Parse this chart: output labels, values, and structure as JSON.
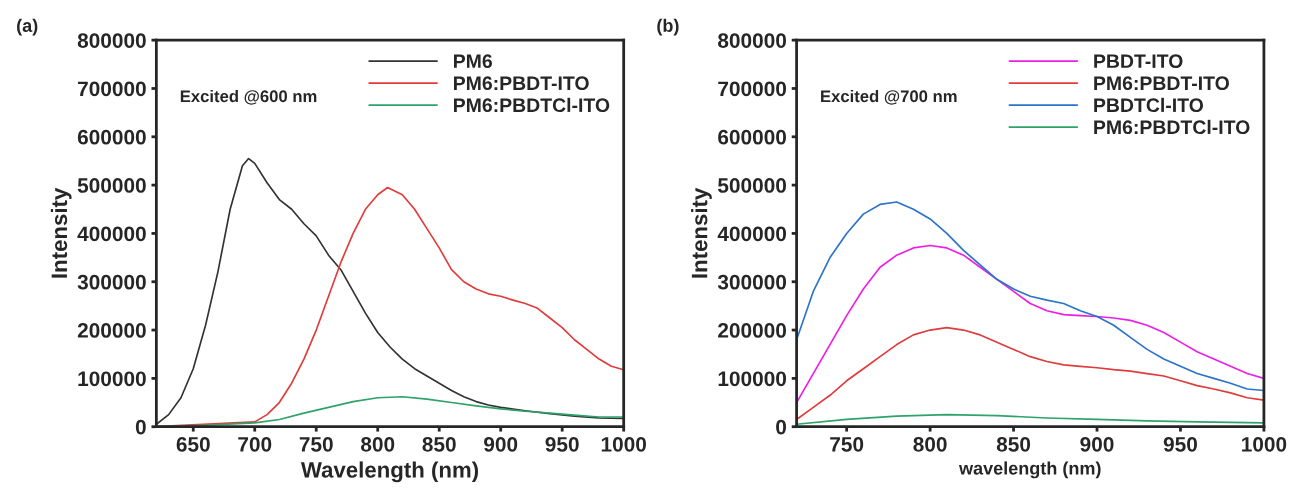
{
  "chart_data": [
    {
      "type": "line",
      "title": "(a)",
      "xlabel": "Wavelength (nm)",
      "ylabel": "Intensity",
      "annotations": [
        "Excited @600 nm"
      ],
      "xlim": [
        620,
        1000
      ],
      "xticks": [
        650,
        700,
        750,
        800,
        850,
        900,
        950,
        1000
      ],
      "ylim": [
        0,
        800000
      ],
      "yticks": [
        0,
        100000,
        200000,
        300000,
        400000,
        500000,
        600000,
        700000,
        800000
      ],
      "grid": false,
      "legend": "top right",
      "series": [
        {
          "name": "PM6",
          "color": "#333333",
          "x": [
            620,
            630,
            640,
            650,
            660,
            670,
            680,
            690,
            695,
            700,
            710,
            720,
            730,
            740,
            750,
            760,
            770,
            780,
            790,
            800,
            810,
            820,
            830,
            840,
            850,
            860,
            870,
            880,
            890,
            900,
            920,
            940,
            960,
            980,
            1000
          ],
          "values": [
            5000,
            25000,
            60000,
            120000,
            210000,
            320000,
            450000,
            540000,
            555000,
            545000,
            505000,
            470000,
            450000,
            420000,
            395000,
            355000,
            325000,
            280000,
            235000,
            195000,
            165000,
            140000,
            120000,
            105000,
            90000,
            75000,
            62000,
            52000,
            45000,
            40000,
            33000,
            27000,
            22000,
            18000,
            17000
          ]
        },
        {
          "name": "PM6:PBDT-ITO",
          "color": "#e03c3c",
          "x": [
            620,
            700,
            710,
            720,
            730,
            740,
            750,
            760,
            770,
            780,
            790,
            800,
            808,
            820,
            830,
            840,
            850,
            860,
            870,
            880,
            890,
            900,
            910,
            920,
            930,
            940,
            950,
            960,
            970,
            980,
            990,
            1000
          ],
          "values": [
            0,
            10000,
            25000,
            50000,
            90000,
            140000,
            200000,
            270000,
            340000,
            400000,
            450000,
            480000,
            495000,
            480000,
            450000,
            410000,
            370000,
            325000,
            300000,
            285000,
            275000,
            270000,
            262000,
            255000,
            245000,
            225000,
            205000,
            180000,
            160000,
            140000,
            125000,
            118000
          ]
        },
        {
          "name": "PM6:PBDTCl-ITO",
          "color": "#2ea36a",
          "x": [
            620,
            660,
            700,
            720,
            740,
            760,
            780,
            800,
            820,
            840,
            860,
            880,
            900,
            920,
            940,
            960,
            980,
            1000
          ],
          "values": [
            0,
            3000,
            8000,
            15000,
            28000,
            40000,
            52000,
            60000,
            62000,
            57000,
            50000,
            43000,
            37000,
            32000,
            28000,
            24000,
            20000,
            20000
          ]
        }
      ]
    },
    {
      "type": "line",
      "title": "(b)",
      "xlabel": "wavelength (nm)",
      "ylabel": "Intensity",
      "annotations": [
        "Excited @700 nm"
      ],
      "xlim": [
        720,
        1000
      ],
      "xticks": [
        750,
        800,
        850,
        900,
        950,
        1000
      ],
      "ylim": [
        0,
        800000
      ],
      "yticks": [
        0,
        100000,
        200000,
        300000,
        400000,
        500000,
        600000,
        700000,
        800000
      ],
      "grid": false,
      "legend": "top right",
      "series": [
        {
          "name": "PBDT-ITO",
          "color": "#ee1ee6",
          "x": [
            720,
            730,
            740,
            750,
            760,
            770,
            780,
            790,
            800,
            810,
            820,
            830,
            840,
            850,
            860,
            870,
            880,
            890,
            900,
            910,
            920,
            930,
            940,
            950,
            960,
            970,
            980,
            990,
            1000
          ],
          "values": [
            50000,
            110000,
            170000,
            230000,
            285000,
            330000,
            355000,
            370000,
            375000,
            370000,
            355000,
            330000,
            305000,
            280000,
            255000,
            240000,
            232000,
            230000,
            228000,
            225000,
            220000,
            210000,
            195000,
            175000,
            155000,
            140000,
            125000,
            110000,
            100000
          ]
        },
        {
          "name": "PM6:PBDT-ITO",
          "color": "#e03c3c",
          "x": [
            720,
            730,
            740,
            750,
            760,
            770,
            780,
            790,
            800,
            810,
            820,
            830,
            840,
            850,
            860,
            870,
            880,
            890,
            900,
            910,
            920,
            930,
            940,
            950,
            960,
            970,
            980,
            990,
            1000
          ],
          "values": [
            15000,
            40000,
            65000,
            95000,
            120000,
            145000,
            170000,
            190000,
            200000,
            205000,
            200000,
            190000,
            175000,
            160000,
            145000,
            135000,
            128000,
            125000,
            122000,
            118000,
            115000,
            110000,
            105000,
            95000,
            85000,
            78000,
            70000,
            60000,
            55000
          ]
        },
        {
          "name": "PBDTCl-ITO",
          "color": "#2b74c9",
          "x": [
            720,
            730,
            740,
            750,
            760,
            770,
            780,
            790,
            800,
            810,
            820,
            830,
            840,
            850,
            860,
            870,
            880,
            890,
            900,
            910,
            920,
            930,
            940,
            950,
            960,
            970,
            980,
            990,
            1000
          ],
          "values": [
            180000,
            280000,
            350000,
            400000,
            440000,
            460000,
            465000,
            450000,
            430000,
            400000,
            365000,
            335000,
            305000,
            285000,
            270000,
            262000,
            255000,
            240000,
            228000,
            210000,
            185000,
            160000,
            140000,
            125000,
            110000,
            100000,
            90000,
            78000,
            75000
          ]
        },
        {
          "name": "PM6:PBDTCl-ITO",
          "color": "#2ea36a",
          "x": [
            720,
            750,
            780,
            810,
            840,
            870,
            900,
            930,
            960,
            1000
          ],
          "values": [
            5000,
            15000,
            22000,
            25000,
            23000,
            18000,
            15000,
            12000,
            10000,
            8000
          ]
        }
      ]
    }
  ]
}
